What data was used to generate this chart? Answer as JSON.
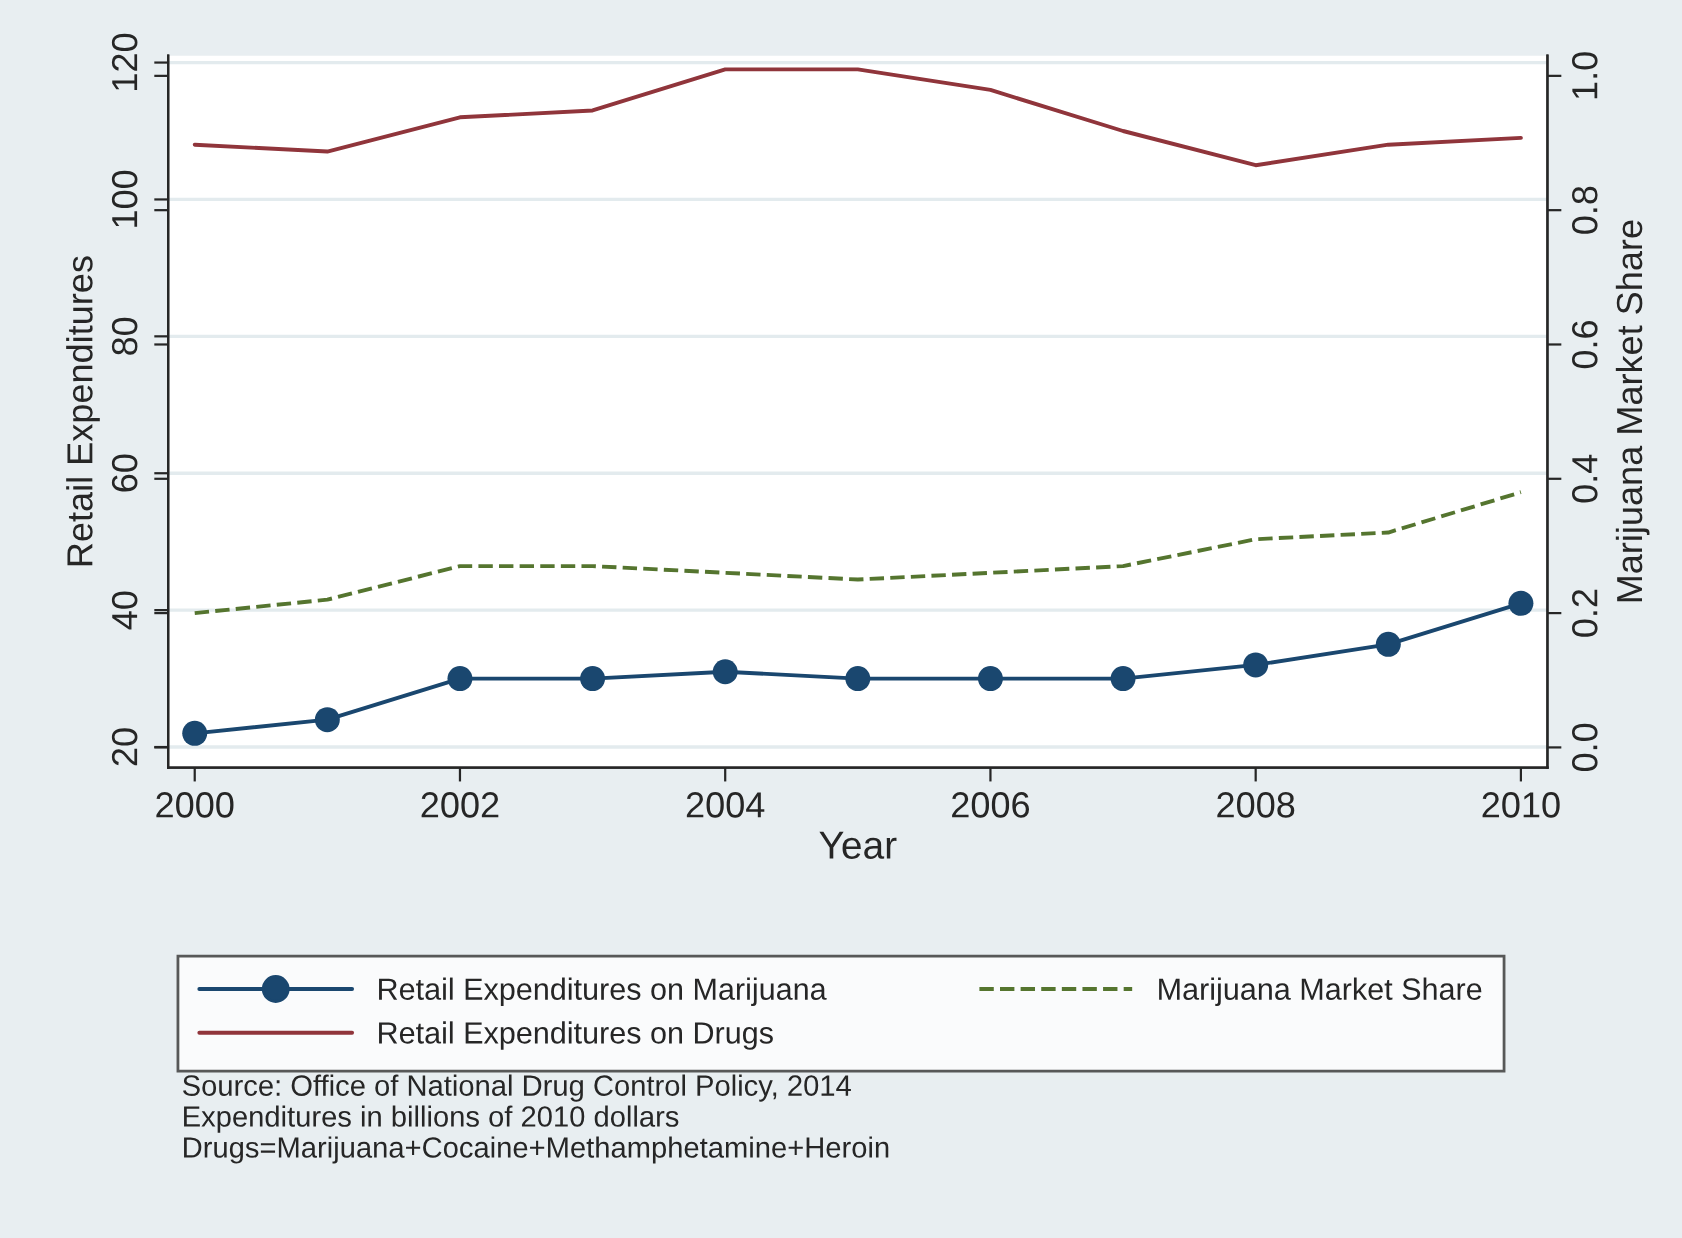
{
  "chart_data": {
    "type": "line",
    "xlabel": "Year",
    "ylabel": "Retail Expenditures",
    "y2label": "Marijuana Market Share",
    "x": [
      2000,
      2001,
      2002,
      2003,
      2004,
      2005,
      2006,
      2007,
      2008,
      2009,
      2010
    ],
    "series": [
      {
        "name": "Retail Expenditures on Marijuana",
        "color": "#1a476f",
        "marker": "circle",
        "line_style": "solid",
        "values": [
          22,
          24,
          30,
          30,
          31,
          30,
          30,
          30,
          32,
          35,
          41
        ]
      },
      {
        "name": "Retail Expenditures on Drugs",
        "color": "#90353b",
        "marker": "none",
        "line_style": "solid",
        "values": [
          108,
          107,
          112,
          113,
          119,
          119,
          116,
          110,
          105,
          108,
          109
        ]
      },
      {
        "name": "Marijuana Market Share",
        "color": "#55752f",
        "marker": "none",
        "line_style": "dashed",
        "axis": "y2",
        "values": [
          0.2,
          0.22,
          0.27,
          0.27,
          0.26,
          0.25,
          0.26,
          0.27,
          0.31,
          0.32,
          0.38
        ]
      }
    ],
    "xlim": [
      1999.8,
      2010.2
    ],
    "xticks": [
      2000,
      2002,
      2004,
      2006,
      2008,
      2010
    ],
    "ylim": [
      17,
      121
    ],
    "yticks": [
      20,
      40,
      60,
      80,
      100,
      120
    ],
    "y2lim": [
      -0.03,
      1.03
    ],
    "y2ticks": [
      {
        "value": 0,
        "label": "0.0"
      },
      0.2,
      0.4,
      0.6,
      0.8,
      {
        "value": 1,
        "label": "1.0"
      }
    ],
    "grid": "y",
    "legend": "bottom",
    "annotations": [
      "Source: Office of National Drug Control Policy, 2014",
      "Expenditures in billions of 2010 dollars",
      "Drugs=Marijuana+Cocaine+Methamphetamine+Heroin"
    ]
  }
}
